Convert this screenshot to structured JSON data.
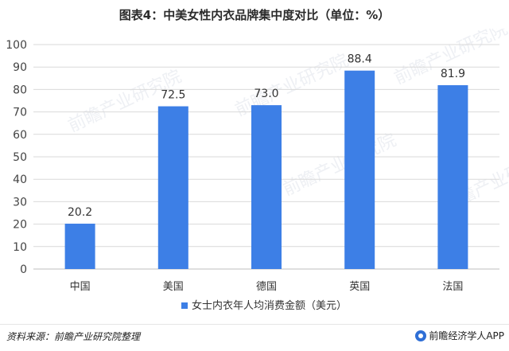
{
  "title": "图表4：中美女性内衣品牌集中度对比（单位：%）",
  "source": "资料来源：前瞻产业研究院整理",
  "brand": "前瞻经济学人APP",
  "watermark": "前瞻产业研究院",
  "colors": {
    "bar": "#3d7fe6",
    "grid": "#d9d9d9",
    "axis": "#bfbfbf"
  },
  "chart_data": {
    "type": "bar",
    "categories": [
      "中国",
      "美国",
      "德国",
      "英国",
      "法国"
    ],
    "series": [
      {
        "name": "女士内衣年人均消费金额（美元）",
        "values": [
          20.2,
          72.5,
          73.0,
          88.4,
          81.9
        ],
        "labels": [
          "20.2",
          "72.5",
          "73.0",
          "88.4",
          "81.9"
        ]
      }
    ],
    "ylim": [
      0,
      100
    ],
    "yticks": [
      0,
      10,
      20,
      30,
      40,
      50,
      60,
      70,
      80,
      90,
      100
    ],
    "grid": true,
    "legend": "bottom"
  }
}
